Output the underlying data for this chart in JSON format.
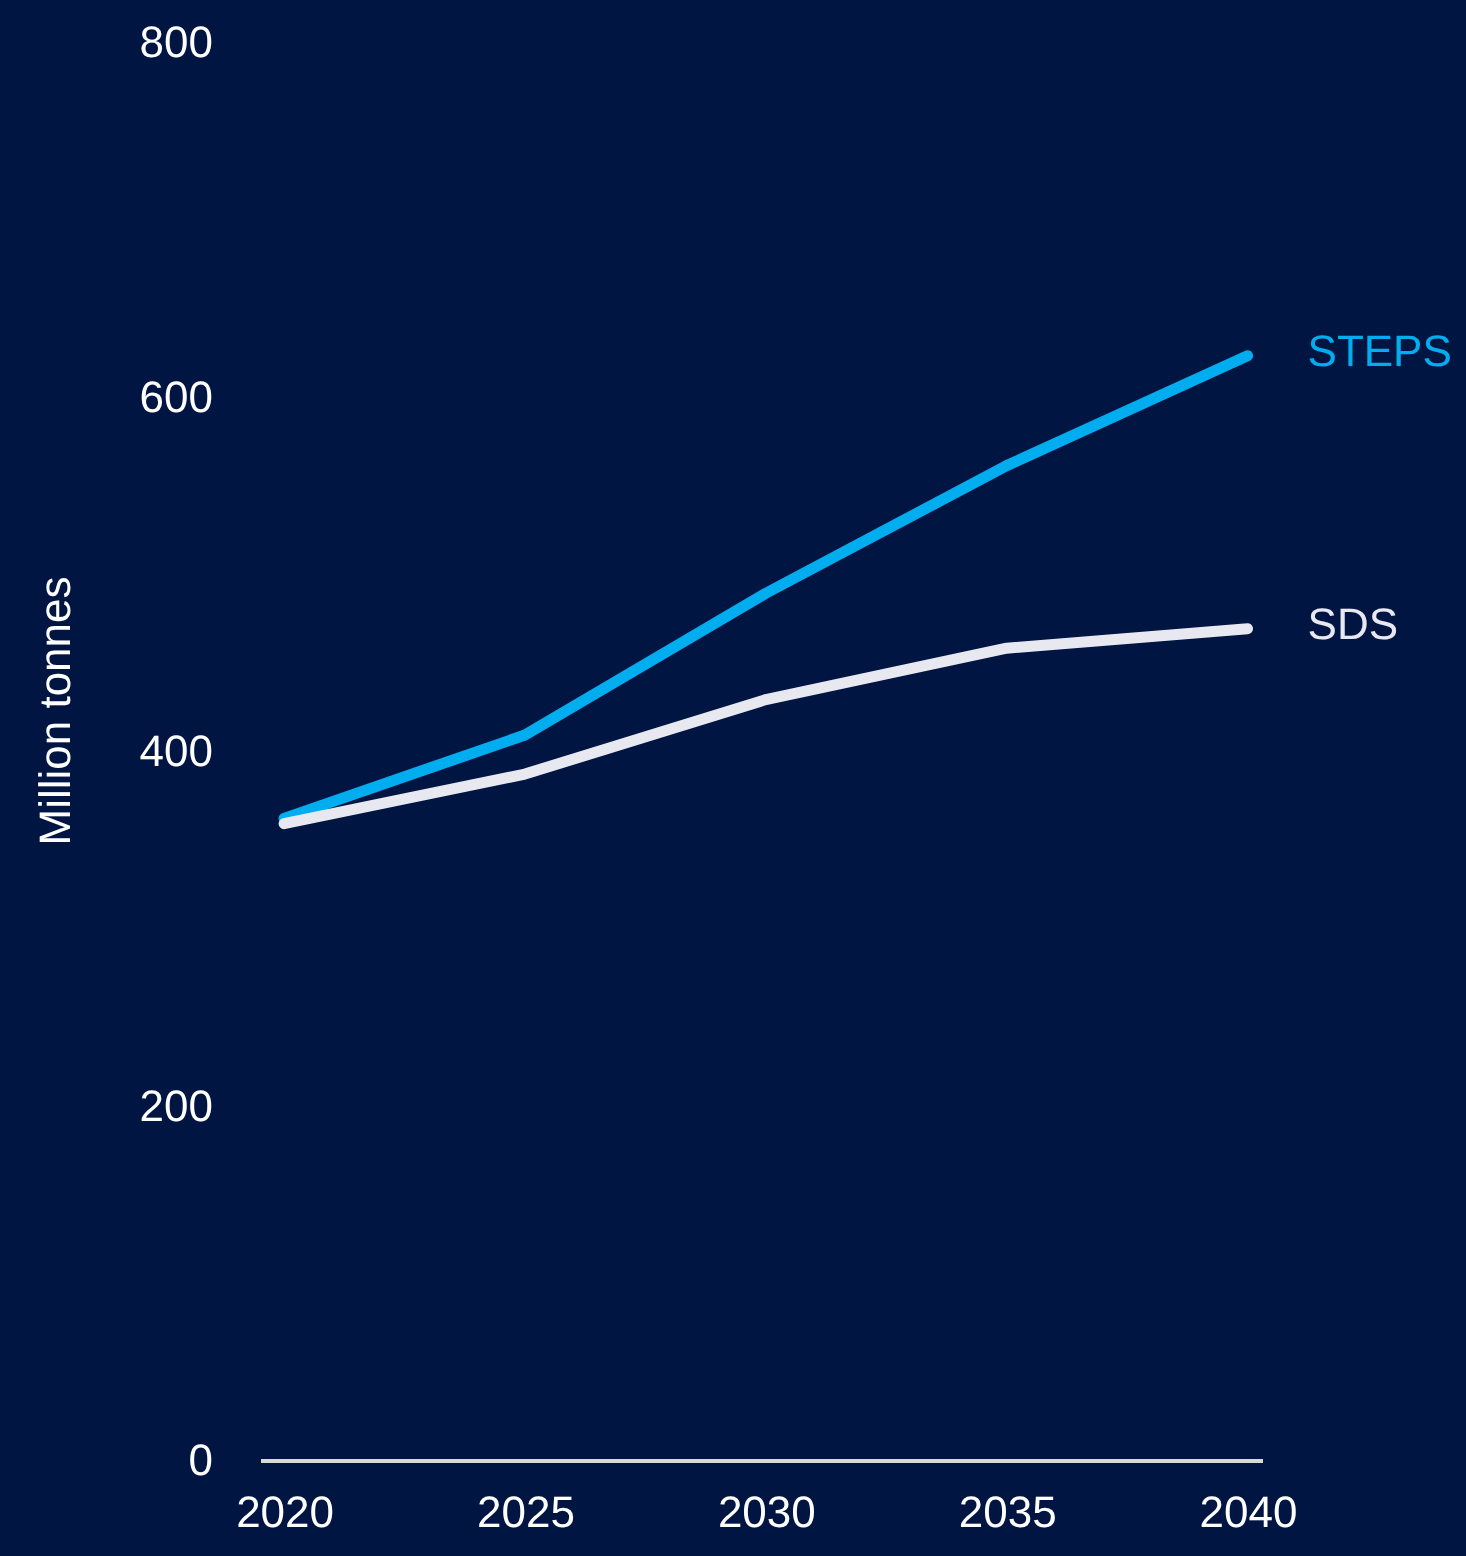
{
  "chart_data": {
    "type": "line",
    "ylabel": "Million tonnes",
    "x": [
      2020,
      2025,
      2030,
      2035,
      2040
    ],
    "series": [
      {
        "name": "STEPS",
        "color": "#00aeef",
        "values": [
          362,
          409,
          489,
          561,
          623
        ]
      },
      {
        "name": "SDS",
        "color": "#e8e8f0",
        "values": [
          359,
          387,
          429,
          458,
          469
        ]
      }
    ],
    "xlim": [
      2019.5,
      2040.3
    ],
    "xticks": [
      2020,
      2025,
      2030,
      2035,
      2040
    ],
    "ylim": [
      0,
      800
    ],
    "yticks": [
      0,
      200,
      400,
      600,
      800
    ],
    "grid": false,
    "legend": false,
    "marker": "none",
    "line_style": "solid"
  }
}
